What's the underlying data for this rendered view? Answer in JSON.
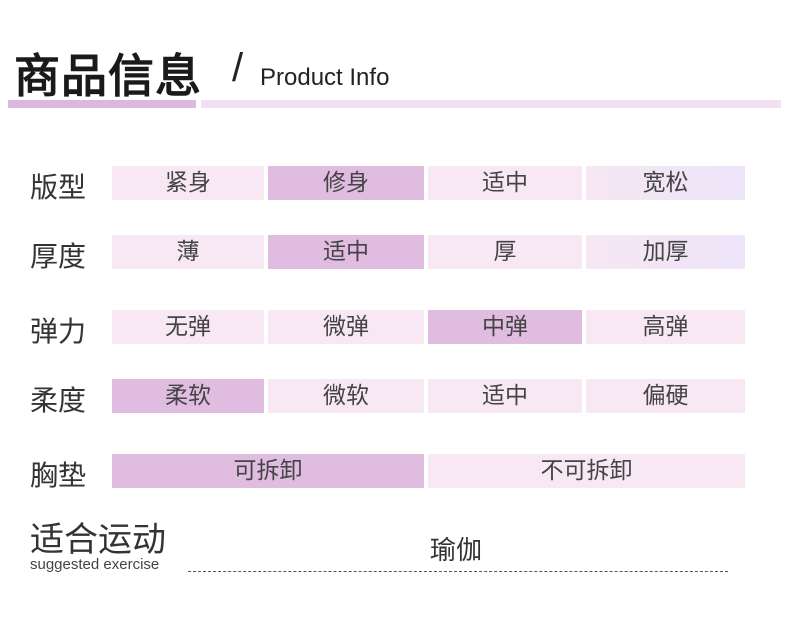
{
  "header": {
    "title_cn": "商品信息",
    "slash": "/",
    "title_en": "Product Info"
  },
  "rows": [
    {
      "label": "版型",
      "options": [
        "紧身",
        "修身",
        "适中",
        "宽松"
      ]
    },
    {
      "label": "厚度",
      "options": [
        "薄",
        "适中",
        "厚",
        "加厚"
      ]
    },
    {
      "label": "弹力",
      "options": [
        "无弹",
        "微弹",
        "中弹",
        "高弹"
      ]
    },
    {
      "label": "柔度",
      "options": [
        "柔软",
        "微软",
        "适中",
        "偏硬"
      ]
    },
    {
      "label": "胸垫",
      "options": [
        "可拆卸",
        "不可拆卸"
      ]
    }
  ],
  "selected": {
    "版型": "修身",
    "厚度": "适中",
    "弹力": "中弹",
    "柔度": "柔软",
    "胸垫": "可拆卸"
  },
  "colors": {
    "selected": "#e0bde0",
    "unselected": "#f7e8f4",
    "accent_bar": "#dcb8df"
  },
  "sport": {
    "label_cn": "适合运动",
    "label_en": "suggested exercise",
    "value": "瑜伽"
  }
}
